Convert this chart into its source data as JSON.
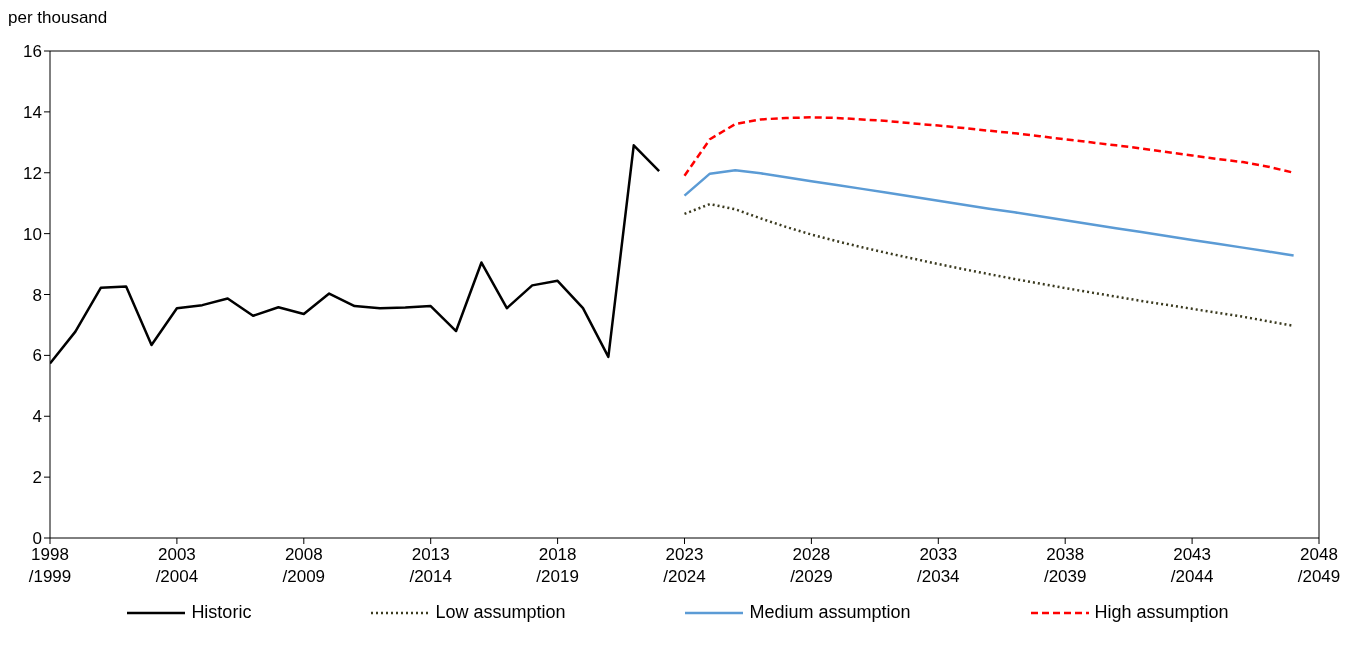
{
  "chart_data": {
    "type": "line",
    "ylabel": "per thousand",
    "categories": [
      "1998/1999",
      null,
      null,
      null,
      null,
      "2003/2004",
      null,
      null,
      null,
      null,
      "2008/2009",
      null,
      null,
      null,
      null,
      "2013/2014",
      null,
      null,
      null,
      null,
      "2018/2019",
      null,
      null,
      null,
      null,
      "2023/2024",
      null,
      null,
      null,
      null,
      "2028/2029",
      null,
      null,
      null,
      null,
      "2033/2034",
      null,
      null,
      null,
      null,
      "2038/2039",
      null,
      null,
      null,
      null,
      "2043/2044",
      null,
      null,
      null,
      null,
      "2048/2049"
    ],
    "series": [
      {
        "name": "Historic",
        "color": "#000000",
        "line_style": "solid",
        "values": [
          5.73,
          6.78,
          8.22,
          8.26,
          6.34,
          7.55,
          7.65,
          7.87,
          7.3,
          7.58,
          7.36,
          8.03,
          7.62,
          7.55,
          7.57,
          7.62,
          6.8,
          9.05,
          7.55,
          8.3,
          8.45,
          7.55,
          5.95,
          12.9,
          12.05,
          null,
          null,
          null,
          null,
          null,
          null,
          null,
          null,
          null,
          null,
          null,
          null,
          null,
          null,
          null,
          null,
          null,
          null,
          null,
          null,
          null,
          null,
          null,
          null,
          null,
          null
        ]
      },
      {
        "name": "Low assumption",
        "color": "#3a3a1f",
        "line_style": "dotted",
        "values": [
          null,
          null,
          null,
          null,
          null,
          null,
          null,
          null,
          null,
          null,
          null,
          null,
          null,
          null,
          null,
          null,
          null,
          null,
          null,
          null,
          null,
          null,
          null,
          null,
          null,
          10.65,
          10.97,
          10.8,
          10.5,
          10.22,
          9.97,
          9.75,
          9.55,
          9.36,
          9.18,
          9.0,
          8.83,
          8.67,
          8.51,
          8.36,
          8.21,
          8.07,
          7.93,
          7.79,
          7.66,
          7.53,
          7.4,
          7.27,
          7.12,
          6.97,
          null
        ]
      },
      {
        "name": "Medium assumption",
        "color": "#5b9bd5",
        "line_style": "solid",
        "values": [
          null,
          null,
          null,
          null,
          null,
          null,
          null,
          null,
          null,
          null,
          null,
          null,
          null,
          null,
          null,
          null,
          null,
          null,
          null,
          null,
          null,
          null,
          null,
          null,
          null,
          11.25,
          11.97,
          12.08,
          11.98,
          11.85,
          11.72,
          11.6,
          11.47,
          11.34,
          11.21,
          11.08,
          10.95,
          10.82,
          10.7,
          10.57,
          10.44,
          10.31,
          10.18,
          10.05,
          9.92,
          9.79,
          9.67,
          9.54,
          9.41,
          9.28,
          null
        ]
      },
      {
        "name": "High assumption",
        "color": "#ff0000",
        "line_style": "dashed",
        "values": [
          null,
          null,
          null,
          null,
          null,
          null,
          null,
          null,
          null,
          null,
          null,
          null,
          null,
          null,
          null,
          null,
          null,
          null,
          null,
          null,
          null,
          null,
          null,
          null,
          null,
          11.9,
          13.1,
          13.6,
          13.75,
          13.8,
          13.82,
          13.8,
          13.75,
          13.7,
          13.62,
          13.55,
          13.47,
          13.38,
          13.3,
          13.2,
          13.1,
          13.0,
          12.9,
          12.8,
          12.68,
          12.57,
          12.45,
          12.35,
          12.2,
          12.0,
          null
        ]
      }
    ],
    "ylim": [
      0,
      16
    ],
    "yticks": [
      0,
      2,
      4,
      6,
      8,
      10,
      12,
      14,
      16
    ],
    "grid": false,
    "legend": "bottom",
    "marker": "none"
  }
}
